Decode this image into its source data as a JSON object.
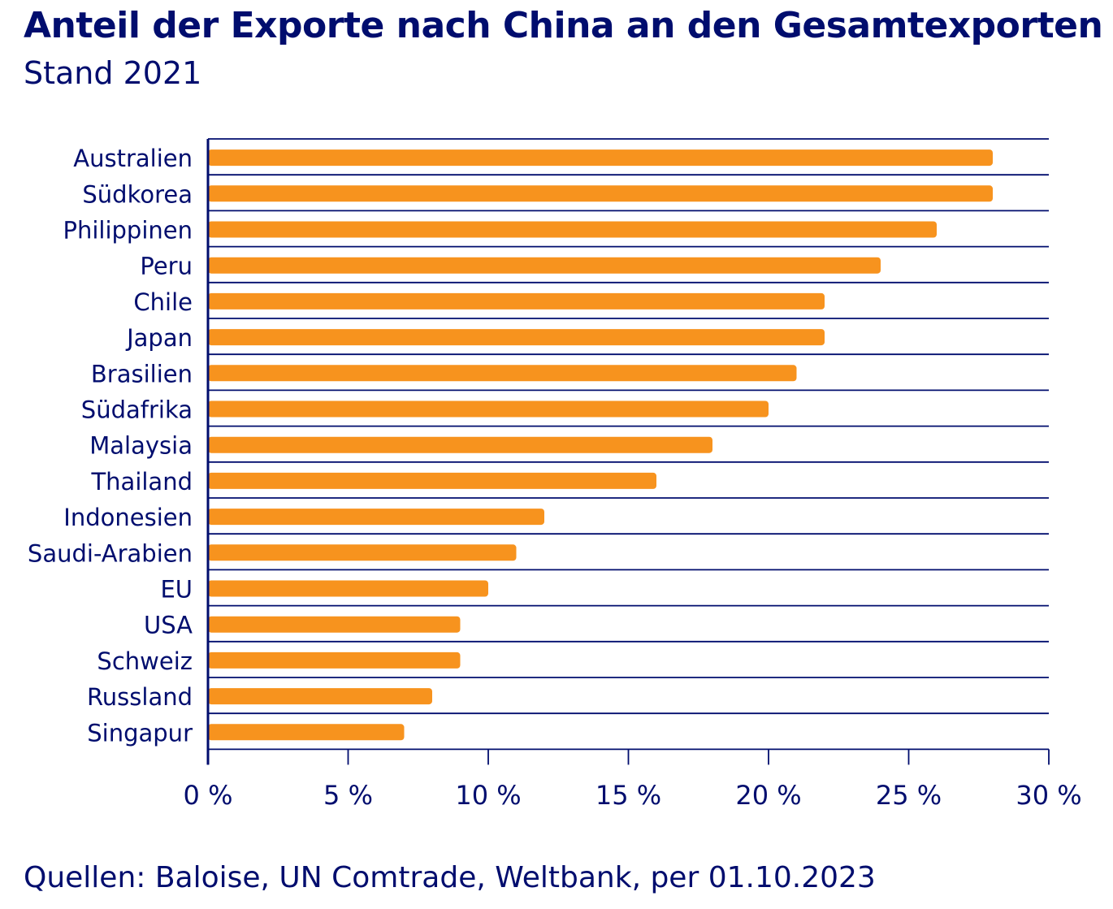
{
  "chart_data": {
    "type": "bar",
    "orientation": "horizontal",
    "title": "Anteil der Exporte nach China an den Gesamtexporten",
    "subtitle": "Stand 2021",
    "source": "Quellen: Baloise, UN Comtrade, Weltbank, per 01.10.2023",
    "categories": [
      "Australien",
      "Südkorea",
      "Philippinen",
      "Peru",
      "Chile",
      "Japan",
      "Brasilien",
      "Südafrika",
      "Malaysia",
      "Thailand",
      "Indonesien",
      "Saudi-Arabien",
      "EU",
      "USA",
      "Schweiz",
      "Russland",
      "Singapur"
    ],
    "values": [
      28,
      28,
      26,
      24,
      22,
      22,
      21,
      20,
      18,
      16,
      12,
      11,
      10,
      9,
      9,
      8,
      7
    ],
    "unit": "%",
    "xlim": [
      0,
      30
    ],
    "xticks": [
      0,
      5,
      10,
      15,
      20,
      25,
      30
    ],
    "xtick_labels": [
      "0 %",
      "5 %",
      "10 %",
      "15 %",
      "20 %",
      "25 %",
      "30 %"
    ],
    "grid": "horizontal row separators",
    "colors": {
      "bar": "#F7931E",
      "text": "#000D6E",
      "lines": "#000D6E"
    }
  }
}
